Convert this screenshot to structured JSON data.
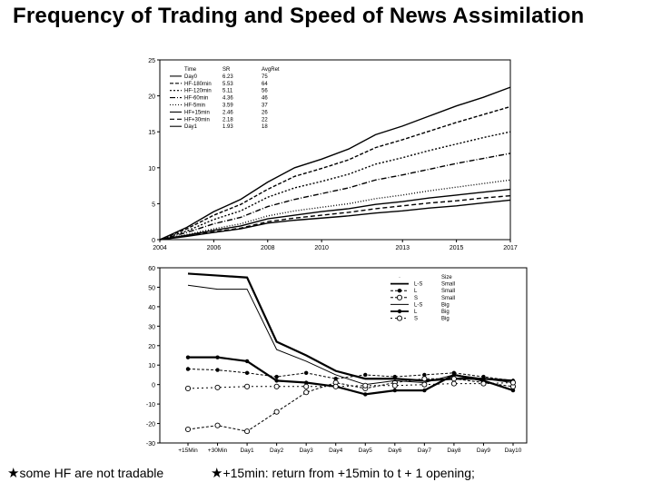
{
  "slide": {
    "title": "Frequency of Trading and Speed of News Assimilation"
  },
  "footnotes": {
    "left_star": "★",
    "left_text": "some HF are not tradable",
    "right_star": "★",
    "right_text": "+15min: return from +15min to t + 1 opening;"
  },
  "chart_data": [
    {
      "type": "line",
      "x": [
        2004,
        2005,
        2006,
        2007,
        2008,
        2009,
        2010,
        2011,
        2012,
        2013,
        2014,
        2015,
        2016,
        2017
      ],
      "xticks": [
        "2004",
        "2006",
        "2008",
        "2010",
        "2013",
        "2015",
        "2017"
      ],
      "xtick_values": [
        2004,
        2006,
        2008,
        2010,
        2013,
        2015,
        2017
      ],
      "xlim": [
        2004,
        2017
      ],
      "ylim": [
        0,
        25
      ],
      "yticks": [
        0,
        5,
        10,
        15,
        20,
        25
      ],
      "legend_header": [
        "Time",
        "SR",
        "AvgRet"
      ],
      "legend_placement": "top-left",
      "series": [
        {
          "name": "Day0",
          "sr": "6.23",
          "avgret": "75",
          "dash": "",
          "values": [
            0,
            1.7,
            3.9,
            5.6,
            8.0,
            10.0,
            11.2,
            12.6,
            14.6,
            15.8,
            17.2,
            18.6,
            19.8,
            21.2
          ]
        },
        {
          "name": "HF-180min",
          "sr": "5.53",
          "avgret": "64",
          "dash": "4,2",
          "values": [
            0,
            1.5,
            3.4,
            4.9,
            7.0,
            8.8,
            9.9,
            11.1,
            12.8,
            13.9,
            15.1,
            16.3,
            17.4,
            18.5
          ]
        },
        {
          "name": "HF-120min",
          "sr": "5.11",
          "avgret": "56",
          "dash": "2,2",
          "values": [
            0,
            1.2,
            2.8,
            4.0,
            5.9,
            7.2,
            8.1,
            9.1,
            10.5,
            11.4,
            12.4,
            13.3,
            14.2,
            15.0
          ]
        },
        {
          "name": "HF-60min",
          "sr": "4.36",
          "avgret": "46",
          "dash": "6,2,1,2",
          "values": [
            0,
            1.0,
            2.2,
            3.1,
            4.6,
            5.6,
            6.4,
            7.2,
            8.3,
            9.0,
            9.8,
            10.6,
            11.3,
            12.0
          ]
        },
        {
          "name": "HF-5min",
          "sr": "3.59",
          "avgret": "37",
          "dash": "1,2",
          "values": [
            0,
            0.7,
            1.5,
            2.2,
            3.3,
            4.0,
            4.5,
            5.0,
            5.7,
            6.2,
            6.8,
            7.3,
            7.8,
            8.3
          ]
        },
        {
          "name": "HF+15min",
          "sr": "2.46",
          "avgret": "26",
          "dash": "",
          "values": [
            0,
            0.6,
            1.3,
            1.9,
            2.9,
            3.4,
            3.9,
            4.3,
            4.9,
            5.3,
            5.8,
            6.2,
            6.6,
            7.0
          ]
        },
        {
          "name": "HF+30min",
          "sr": "2.18",
          "avgret": "22",
          "dash": "5,3",
          "values": [
            0,
            0.5,
            1.1,
            1.6,
            2.5,
            3.0,
            3.4,
            3.8,
            4.3,
            4.7,
            5.1,
            5.4,
            5.8,
            6.1
          ]
        },
        {
          "name": "Day1",
          "sr": "1.93",
          "avgret": "18",
          "dash": "",
          "values": [
            0,
            0.45,
            1.0,
            1.5,
            2.3,
            2.7,
            3.0,
            3.3,
            3.7,
            4.0,
            4.4,
            4.7,
            5.1,
            5.5
          ]
        }
      ]
    },
    {
      "type": "line",
      "categories": [
        "+15Min",
        "+30Min",
        "Day1",
        "Day2",
        "Day3",
        "Day4",
        "Day5",
        "Day6",
        "Day7",
        "Day8",
        "Day9",
        "Day10"
      ],
      "ylim": [
        -30,
        60
      ],
      "yticks": [
        -30,
        -20,
        -10,
        0,
        10,
        20,
        30,
        40,
        50,
        60
      ],
      "legend_header": [
        "",
        "Size"
      ],
      "legend_placement": "top-right",
      "series": [
        {
          "name": "L-S",
          "size": "Small",
          "marker": "none",
          "dash": "",
          "width": 2.2,
          "values": [
            57,
            56,
            55,
            22,
            15,
            7,
            3,
            3,
            2,
            3,
            3,
            2
          ]
        },
        {
          "name": "L",
          "size": "Small",
          "marker": "filled",
          "dash": "3,2",
          "width": 1,
          "values": [
            8,
            7.5,
            6,
            4,
            6,
            3,
            5,
            4,
            5,
            6,
            4,
            2
          ]
        },
        {
          "name": "S",
          "size": "Small",
          "marker": "open",
          "dash": "3,2",
          "width": 1,
          "values": [
            -23,
            -21,
            -24,
            -14,
            -4,
            1,
            -2,
            1,
            3,
            3,
            1,
            -1
          ]
        },
        {
          "name": "L-S",
          "size": "Big",
          "marker": "none",
          "dash": "",
          "width": 1,
          "values": [
            51,
            49,
            49,
            18,
            12,
            5,
            0,
            2,
            1,
            5,
            3,
            1
          ]
        },
        {
          "name": "L",
          "size": "Big",
          "marker": "filled",
          "dash": "",
          "width": 2.2,
          "values": [
            14,
            14,
            12,
            2,
            1,
            -1,
            -5,
            -3,
            -3,
            5,
            2,
            -3
          ]
        },
        {
          "name": "S",
          "size": "Big",
          "marker": "open",
          "dash": "2,3",
          "width": 1,
          "values": [
            -2,
            -1.5,
            -1,
            -1,
            -1,
            -1,
            -0.5,
            -0.5,
            0,
            0.5,
            0.5,
            1
          ]
        }
      ]
    }
  ]
}
